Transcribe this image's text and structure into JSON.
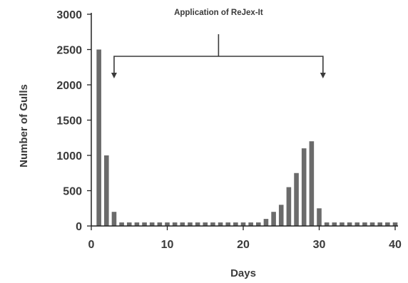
{
  "chart_data": {
    "type": "bar",
    "title": "",
    "xlabel": "Days",
    "ylabel": "Number of Gulls",
    "xlim": [
      0,
      40
    ],
    "ylim": [
      0,
      3000
    ],
    "xticks": [
      0,
      10,
      20,
      30,
      40
    ],
    "yticks": [
      0,
      500,
      1000,
      1500,
      2000,
      2500,
      3000
    ],
    "grid": false,
    "bar_color": "#6b6b6b",
    "x": [
      1,
      2,
      3,
      4,
      5,
      6,
      7,
      8,
      9,
      10,
      11,
      12,
      13,
      14,
      15,
      16,
      17,
      18,
      19,
      20,
      21,
      22,
      23,
      24,
      25,
      26,
      27,
      28,
      29,
      30,
      31,
      32,
      33,
      34,
      35,
      36,
      37,
      38,
      39,
      40
    ],
    "values": [
      2500,
      1000,
      200,
      50,
      50,
      50,
      50,
      50,
      50,
      50,
      50,
      50,
      50,
      50,
      50,
      50,
      50,
      50,
      50,
      50,
      50,
      50,
      100,
      200,
      300,
      550,
      750,
      1100,
      1200,
      250,
      50,
      50,
      50,
      50,
      50,
      50,
      50,
      50,
      50,
      50
    ],
    "annotation": {
      "text": "Application of ReJex-It",
      "x_start": 3,
      "x_end": 30.5
    }
  }
}
